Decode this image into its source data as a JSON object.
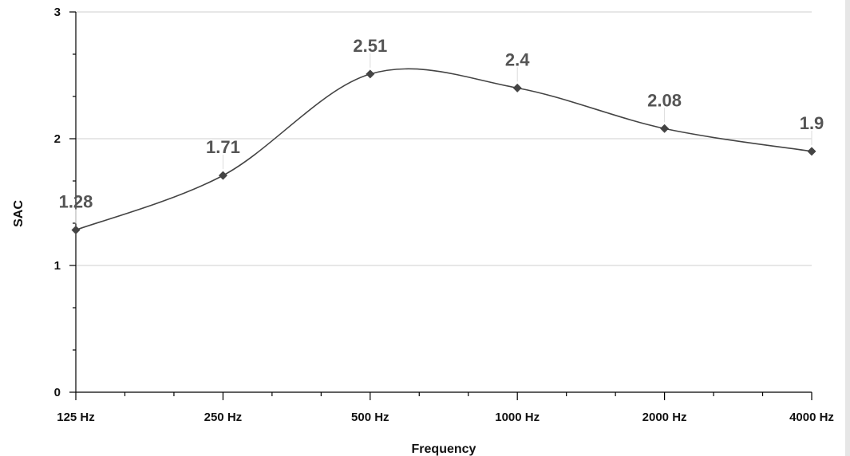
{
  "chart_data": {
    "type": "line",
    "categories": [
      "125 Hz",
      "250 Hz",
      "500 Hz",
      "1000 Hz",
      "2000 Hz",
      "4000 Hz"
    ],
    "values": [
      1.28,
      1.71,
      2.51,
      2.4,
      2.08,
      1.9
    ],
    "value_labels": [
      "1.28",
      "1.71",
      "2.51",
      "2.4",
      "2.08",
      "1.9"
    ],
    "xlabel": "Frequency",
    "ylabel": "SAC",
    "ylim": [
      0,
      3
    ],
    "yticks": [
      "0",
      "1",
      "2",
      "3"
    ],
    "grid": true,
    "smooth": true,
    "marker": "diamond",
    "line_color": "#444444",
    "label_color": "#555555"
  }
}
